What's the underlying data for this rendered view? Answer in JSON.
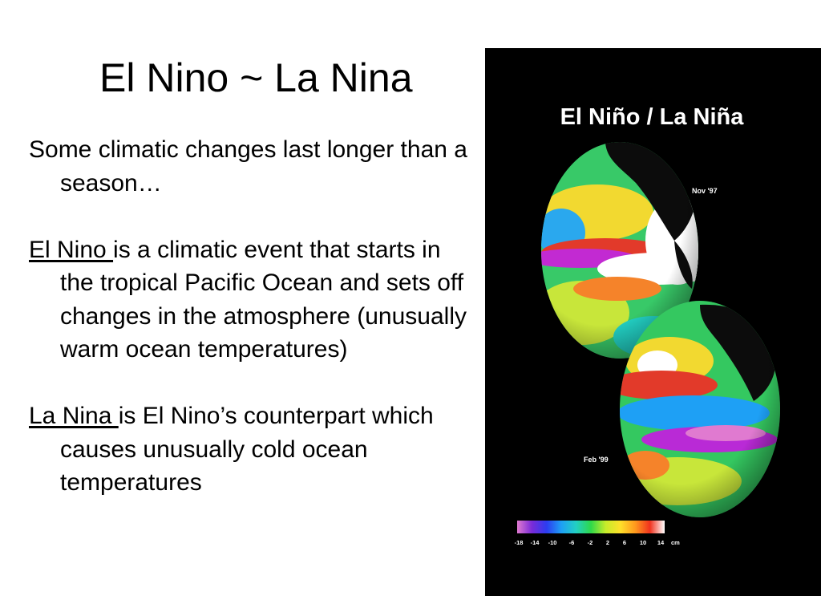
{
  "slide": {
    "title": "El Nino ~ La Nina"
  },
  "paragraphs": [
    {
      "term": "",
      "text": "Some climatic changes last longer than a season…"
    },
    {
      "term": "El Nino ",
      "text": "is a climatic event that starts in the tropical Pacific Ocean and sets off changes in the atmosphere (unusually warm ocean temperatures)"
    },
    {
      "term": "La Nina ",
      "text": "is El Nino’s counterpart which causes unusually cold ocean temperatures"
    }
  ],
  "figure": {
    "title": "El Niño / La Niña",
    "globes": [
      {
        "date": "Nov '97",
        "icon": "globe-sea-surface-anomaly-icon"
      },
      {
        "date": "Feb '99",
        "icon": "globe-sea-surface-anomaly-icon"
      }
    ],
    "scale": {
      "ticks": [
        "-18",
        "-14",
        "-10",
        "-6",
        "-2",
        "2",
        "6",
        "10",
        "14"
      ],
      "unit": "cm",
      "colors": [
        "#e07ad0",
        "#7a2bd8",
        "#2c3cf0",
        "#1ea0f5",
        "#22cfc3",
        "#2ed84a",
        "#c6ec2a",
        "#ffe02a",
        "#ff9a1e",
        "#f0321e",
        "#ffffff"
      ]
    }
  }
}
